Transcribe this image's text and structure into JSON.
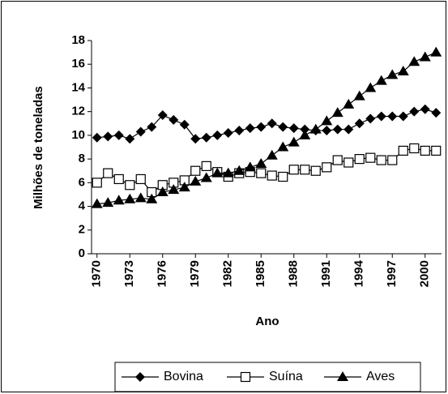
{
  "chart_data": {
    "type": "line",
    "x_label": "Ano",
    "y_label": "Milhões de toneladas",
    "x": [
      1970,
      1971,
      1972,
      1973,
      1974,
      1975,
      1976,
      1977,
      1978,
      1979,
      1980,
      1981,
      1982,
      1983,
      1984,
      1985,
      1986,
      1987,
      1988,
      1989,
      1990,
      1991,
      1992,
      1993,
      1994,
      1995,
      1996,
      1997,
      1998,
      1999,
      2000,
      2001
    ],
    "xlim": [
      1969.5,
      2001.5
    ],
    "xticks": [
      1970,
      1973,
      1976,
      1979,
      1982,
      1985,
      1988,
      1991,
      1994,
      1997,
      2000
    ],
    "ylim": [
      0,
      18
    ],
    "yticks": [
      0,
      2,
      4,
      6,
      8,
      10,
      12,
      14,
      16,
      18
    ],
    "grid": false,
    "legend": "bottom",
    "series": [
      {
        "name": "Bovina",
        "color": "#000000",
        "marker": "diamond",
        "values": [
          9.8,
          9.9,
          10.0,
          9.7,
          10.3,
          10.7,
          11.7,
          11.3,
          10.9,
          9.7,
          9.8,
          10.0,
          10.2,
          10.4,
          10.6,
          10.7,
          11.0,
          10.7,
          10.6,
          10.5,
          10.4,
          10.4,
          10.5,
          10.5,
          11.0,
          11.4,
          11.6,
          11.6,
          11.6,
          12.0,
          12.2,
          11.9
        ]
      },
      {
        "name": "Suína",
        "color": "#000000",
        "marker": "square",
        "values": [
          6.0,
          6.8,
          6.3,
          5.8,
          6.3,
          5.2,
          5.8,
          6.0,
          6.2,
          7.0,
          7.4,
          6.9,
          6.5,
          6.8,
          6.9,
          6.8,
          6.6,
          6.5,
          7.1,
          7.1,
          7.0,
          7.3,
          7.9,
          7.7,
          8.0,
          8.1,
          7.9,
          7.9,
          8.7,
          8.9,
          8.7,
          8.7
        ]
      },
      {
        "name": "Aves",
        "color": "#000000",
        "marker": "triangle",
        "values": [
          4.2,
          4.3,
          4.5,
          4.6,
          4.7,
          4.6,
          5.2,
          5.4,
          5.6,
          6.1,
          6.4,
          6.8,
          6.8,
          7.0,
          7.3,
          7.6,
          8.3,
          9.0,
          9.4,
          10.0,
          10.5,
          11.2,
          11.9,
          12.6,
          13.3,
          14.0,
          14.6,
          15.1,
          15.4,
          16.2,
          16.6,
          17.0
        ]
      }
    ]
  }
}
